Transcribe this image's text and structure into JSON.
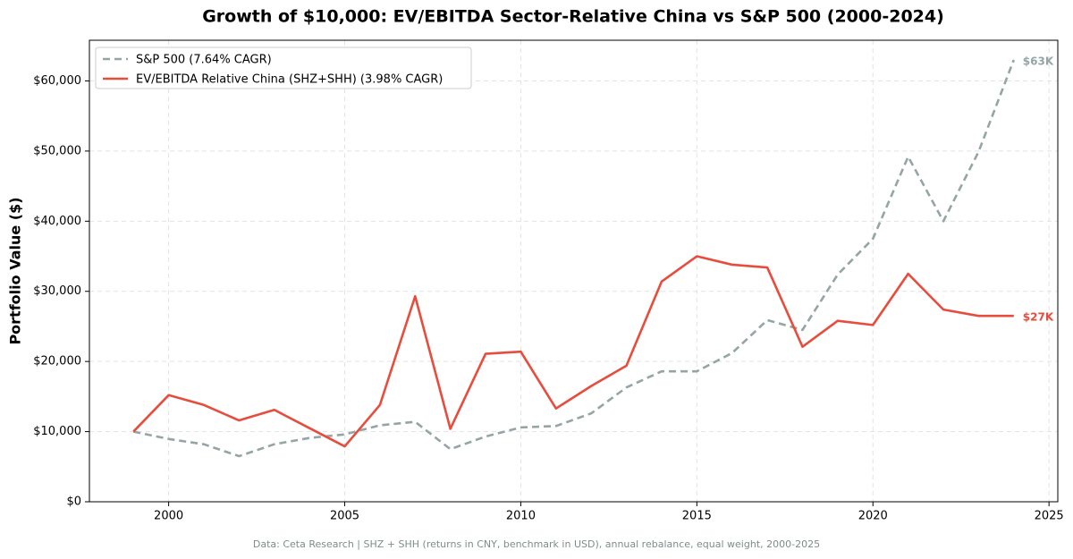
{
  "chart_data": {
    "type": "line",
    "title": "Growth of $10,000: EV/EBITDA Sector-Relative China vs S&P 500 (2000-2024)",
    "y_label": "Portfolio Value ($)",
    "source": "Data: Ceta Research | SHZ + SHH (returns in CNY, benchmark in USD), annual rebalance, equal weight, 2000-2025",
    "x": [
      1999,
      2000,
      2001,
      2002,
      2003,
      2004,
      2005,
      2006,
      2007,
      2008,
      2009,
      2010,
      2011,
      2012,
      2013,
      2014,
      2015,
      2016,
      2017,
      2018,
      2019,
      2020,
      2021,
      2022,
      2023,
      2024
    ],
    "series": [
      {
        "name": "S&P 500 (7.64% CAGR)",
        "color": "#95a5a6",
        "line_style": "dashed",
        "values": [
          10000,
          8950,
          8200,
          6500,
          8200,
          9100,
          9600,
          10900,
          11400,
          7500,
          9300,
          10600,
          10800,
          12600,
          16300,
          18600,
          18600,
          21200,
          25900,
          24500,
          32400,
          37500,
          49200,
          40000,
          49900,
          63000
        ],
        "value_labels": [
          null,
          null,
          null,
          null,
          null,
          null,
          null,
          null,
          null,
          null,
          null,
          null,
          null,
          null,
          null,
          null,
          null,
          null,
          null,
          null,
          null,
          null,
          null,
          null,
          null,
          "$63K"
        ]
      },
      {
        "name": "EV/EBITDA Relative China (SHZ+SHH) (3.98% CAGR)",
        "color": "#e74c3c",
        "line_style": "solid",
        "values": [
          10000,
          15200,
          13800,
          11600,
          13100,
          10500,
          7900,
          13800,
          29300,
          10400,
          21100,
          21400,
          13300,
          16500,
          19400,
          31400,
          35000,
          33800,
          33400,
          22100,
          25800,
          25200,
          32500,
          27400,
          26500,
          26500
        ],
        "value_labels": [
          null,
          null,
          null,
          null,
          null,
          null,
          null,
          null,
          null,
          null,
          null,
          null,
          null,
          null,
          null,
          null,
          null,
          null,
          null,
          null,
          null,
          null,
          null,
          null,
          null,
          "$27K"
        ]
      }
    ],
    "xlim": [
      1997.75,
      2025.25
    ],
    "xticks": [
      2000,
      2005,
      2010,
      2015,
      2020,
      2025
    ],
    "ylim": [
      0,
      65800
    ],
    "yticks": [
      {
        "value": 0,
        "label": "$0"
      },
      {
        "value": 10000,
        "label": "$10,000"
      },
      {
        "value": 20000,
        "label": "$20,000"
      },
      {
        "value": 30000,
        "label": "$30,000"
      },
      {
        "value": 40000,
        "label": "$40,000"
      },
      {
        "value": 50000,
        "label": "$50,000"
      },
      {
        "value": 60000,
        "label": "$60,000"
      }
    ],
    "grid": true,
    "legend": "upper left"
  }
}
